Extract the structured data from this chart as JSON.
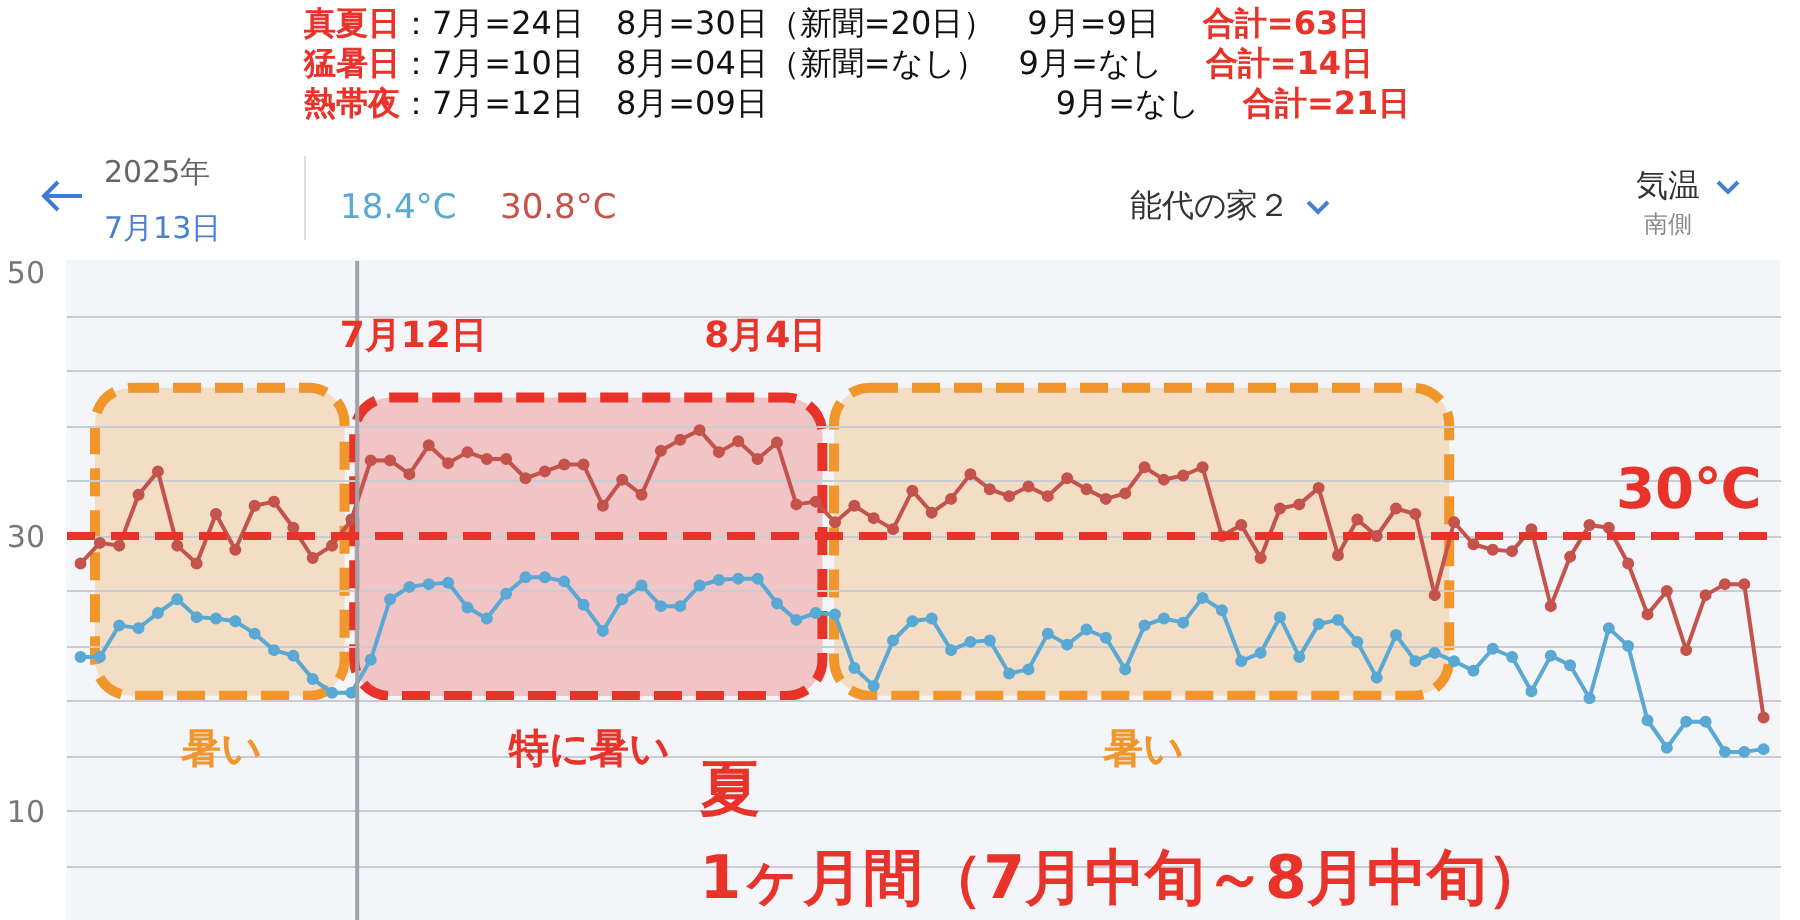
{
  "chart_data": {
    "type": "line",
    "annotations": [
      "真夏日",
      "：7月=24日　8月=30日（新聞=20日）　9月=9日",
      "合計=63日",
      "猛暑日",
      "：7月=10日　8月=04日（新聞=なし）　9月=なし",
      "合計=14日",
      "熱帯夜",
      "：7月=12日　8月=09日　　　　　　　　　9月=なし",
      "合計=21日",
      "2025年",
      "7月13日",
      "18.4°C",
      "30.8°C",
      "能代の家２",
      "気温",
      "南側",
      "7月12日",
      "8月4日",
      "夏",
      "1ヶ月間（7月中旬～8月中旬）",
      "暑い",
      "特に暑い",
      "暑い"
    ],
    "categories": [
      null,
      null,
      null,
      null,
      null,
      null,
      null,
      null,
      null,
      null,
      null,
      null,
      null,
      null,
      null,
      null,
      null,
      null,
      null,
      null,
      null,
      null,
      null,
      null,
      null,
      null,
      null,
      null,
      null,
      null,
      null,
      null,
      null,
      null,
      null,
      null,
      null,
      null,
      null,
      null,
      null,
      null,
      null,
      null,
      null,
      null,
      null,
      null,
      null,
      null,
      null,
      null,
      null,
      null,
      null,
      null,
      null,
      null,
      null,
      null,
      null,
      null,
      null,
      null,
      null,
      null,
      null,
      null,
      null,
      null,
      null,
      null,
      null,
      null,
      null,
      null,
      null,
      null,
      null,
      null,
      null,
      null,
      null,
      null,
      null,
      null,
      null,
      null
    ],
    "series": [
      {
        "color": "#c4534c",
        "values": [
          28.0,
          29.5,
          29.3,
          33.0,
          34.7,
          29.3,
          28.0,
          31.6,
          29.0,
          32.2,
          32.5,
          30.6,
          28.4,
          29.3,
          31.2,
          35.5,
          35.5,
          34.5,
          36.6,
          35.3,
          36.1,
          35.6,
          35.6,
          34.2,
          34.7,
          35.2,
          35.2,
          32.2,
          34.1,
          33.0,
          36.2,
          37.0,
          37.7,
          36.1,
          36.9,
          35.6,
          36.8,
          32.3,
          32.5,
          31.0,
          32.2,
          31.3,
          30.5,
          33.3,
          31.7,
          32.7,
          34.5,
          33.4,
          32.9,
          33.6,
          32.9,
          34.2,
          33.4,
          32.7,
          33.1,
          35.0,
          34.1,
          34.4,
          35.0,
          30.0,
          30.8,
          28.4,
          32.0,
          32.3,
          33.5,
          28.6,
          31.2,
          30.0,
          32.0,
          31.6,
          25.7,
          31.0,
          29.4,
          29.0,
          28.9,
          30.5,
          24.9,
          28.5,
          30.8,
          30.6,
          28.0,
          24.3,
          26.0,
          21.7,
          25.7,
          26.5,
          26.5,
          16.8
        ]
      },
      {
        "color": "#5aa8d4",
        "values": [
          21.2,
          21.2,
          23.5,
          23.3,
          24.4,
          25.4,
          24.1,
          24.0,
          23.8,
          22.9,
          21.7,
          21.3,
          19.6,
          18.6,
          18.6,
          21.0,
          25.4,
          26.3,
          26.5,
          26.6,
          24.8,
          24.0,
          25.8,
          27.0,
          27.0,
          26.7,
          25.0,
          23.1,
          25.4,
          26.4,
          24.9,
          24.9,
          26.4,
          26.8,
          26.9,
          26.9,
          25.1,
          23.9,
          24.4,
          24.3,
          20.4,
          19.1,
          22.4,
          23.8,
          24.0,
          21.7,
          22.3,
          22.4,
          20.0,
          20.3,
          22.9,
          22.1,
          23.2,
          22.6,
          20.3,
          23.5,
          24.0,
          23.7,
          25.5,
          24.6,
          20.9,
          21.5,
          24.1,
          21.2,
          23.6,
          23.9,
          22.3,
          19.7,
          22.8,
          20.9,
          21.5,
          20.9,
          20.2,
          21.8,
          21.2,
          18.7,
          21.3,
          20.6,
          18.2,
          23.3,
          22.0,
          16.6,
          14.6,
          16.5,
          16.5,
          14.3,
          14.3,
          14.5
        ]
      }
    ],
    "ylim": [
      2,
      50
    ],
    "yticks": [
      {
        "value": 6,
        "label": null
      },
      10,
      {
        "value": 14,
        "label": null
      },
      {
        "value": 18,
        "label": null
      },
      {
        "value": 22,
        "label": null
      },
      {
        "value": 26,
        "label": null
      },
      30,
      {
        "value": 34,
        "label": null
      },
      {
        "value": 38,
        "label": null
      },
      {
        "value": 42,
        "label": null
      },
      {
        "value": 46,
        "label": null
      },
      50
    ],
    "tick_labels": "y",
    "grid": "y",
    "marker": "circle",
    "line_style": "solid",
    "ref_lines": [
      {
        "axis": "y",
        "value": 30,
        "label": "30℃",
        "color": "#e8332a",
        "line_style": "dashed"
      }
    ]
  }
}
